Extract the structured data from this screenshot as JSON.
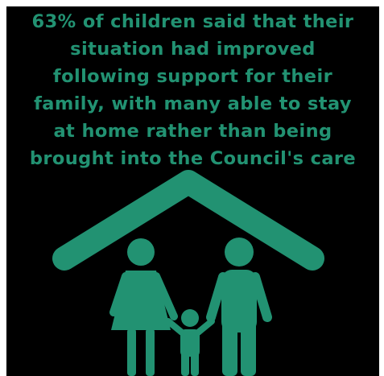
{
  "theme": {
    "background": "#000000",
    "accent": "#229272"
  },
  "headline": {
    "lines": [
      "63% of children said that their",
      "situation had improved",
      "following support for their",
      "family, with many able to stay",
      "at home rather than being",
      "brought into the Council's care"
    ]
  },
  "illustration": {
    "icon": "family-under-roof-icon"
  }
}
